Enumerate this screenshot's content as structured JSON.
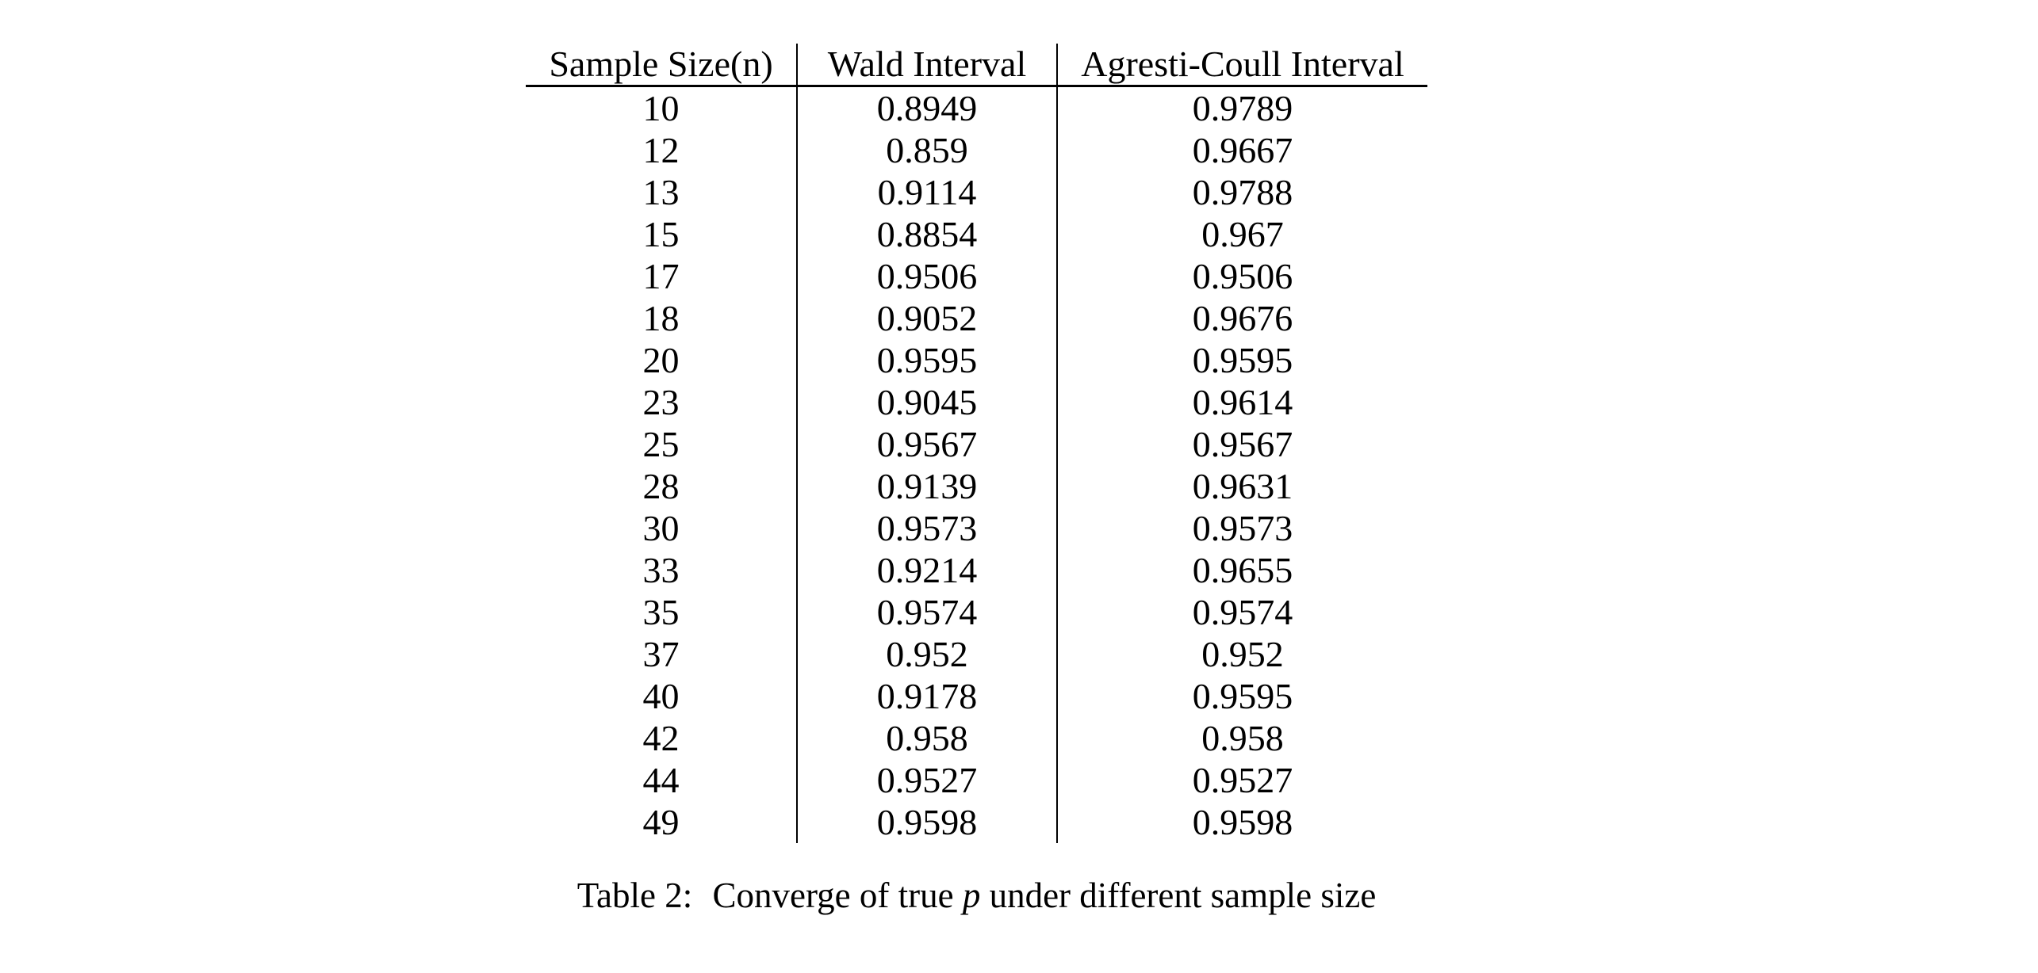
{
  "page": {
    "background_color": "#ffffff",
    "text_color": "#000000"
  },
  "table": {
    "columns": [
      "Sample Size(n)",
      "Wald Interval",
      "Agresti-Coull Interval"
    ],
    "rows": [
      [
        "10",
        "0.8949",
        "0.9789"
      ],
      [
        "12",
        "0.859",
        "0.9667"
      ],
      [
        "13",
        "0.9114",
        "0.9788"
      ],
      [
        "15",
        "0.8854",
        "0.967"
      ],
      [
        "17",
        "0.9506",
        "0.9506"
      ],
      [
        "18",
        "0.9052",
        "0.9676"
      ],
      [
        "20",
        "0.9595",
        "0.9595"
      ],
      [
        "23",
        "0.9045",
        "0.9614"
      ],
      [
        "25",
        "0.9567",
        "0.9567"
      ],
      [
        "28",
        "0.9139",
        "0.9631"
      ],
      [
        "30",
        "0.9573",
        "0.9573"
      ],
      [
        "33",
        "0.9214",
        "0.9655"
      ],
      [
        "35",
        "0.9574",
        "0.9574"
      ],
      [
        "37",
        "0.952",
        "0.952"
      ],
      [
        "40",
        "0.9178",
        "0.9595"
      ],
      [
        "42",
        "0.958",
        "0.958"
      ],
      [
        "44",
        "0.9527",
        "0.9527"
      ],
      [
        "49",
        "0.9598",
        "0.9598"
      ]
    ]
  },
  "caption": {
    "label": "Table 2:",
    "before_variable": "Converge of true",
    "variable": "p",
    "after_variable": "under different sample size"
  }
}
